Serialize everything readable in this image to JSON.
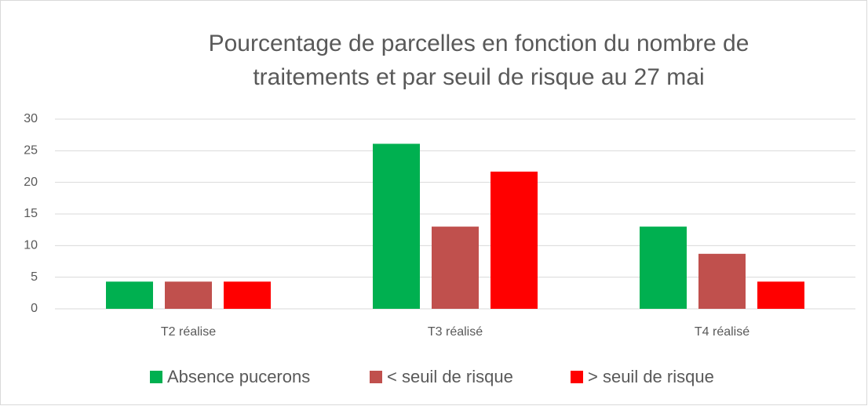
{
  "chart_data": {
    "type": "bar",
    "title": [
      "Pourcentage de parcelles en fonction du nombre de",
      "traitements et par seuil de risque au 27 mai"
    ],
    "categories": [
      "T2 réalise",
      "T3 réalisé",
      "T4 réalisé"
    ],
    "series": [
      {
        "name": "Absence pucerons",
        "color": "#00b050",
        "values": [
          4.3,
          26.1,
          13.0
        ]
      },
      {
        "name": "< seuil de risque",
        "color": "#c0504d",
        "values": [
          4.3,
          13.0,
          8.7
        ]
      },
      {
        "name": "> seuil de risque",
        "color": "#ff0000",
        "values": [
          4.3,
          21.7,
          4.3
        ]
      }
    ],
    "ylim": [
      0,
      30
    ],
    "yticks": [
      0,
      5,
      10,
      15,
      20,
      25,
      30
    ],
    "grid": true,
    "legend": "bottom"
  }
}
